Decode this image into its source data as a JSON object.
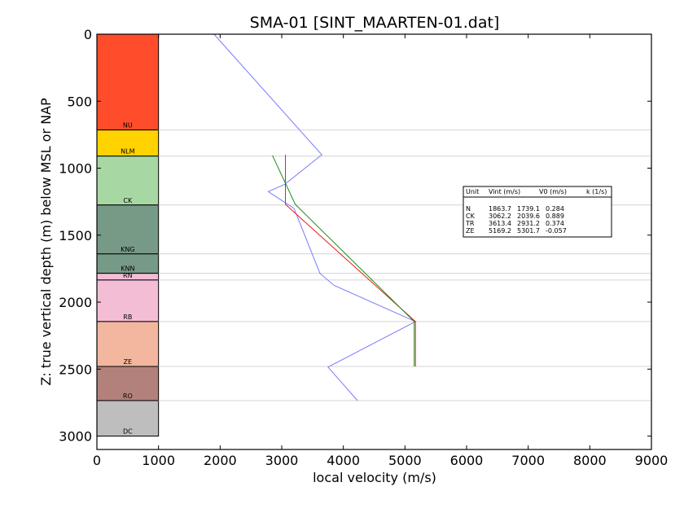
{
  "chart_data": {
    "type": "line",
    "title": "SMA-01 [SINT_MAARTEN-01.dat]",
    "xlabel": "local velocity (m/s)",
    "ylabel": "Z: true vertical depth (m) below MSL or NAP",
    "xlim": [
      0,
      9000
    ],
    "ylim": [
      3100,
      0
    ],
    "x_ticks": [
      0,
      1000,
      2000,
      3000,
      4000,
      5000,
      6000,
      7000,
      8000,
      9000
    ],
    "y_ticks": [
      0,
      500,
      1000,
      1500,
      2000,
      2500,
      3000
    ],
    "horizontal_grid_depths": [
      715,
      910,
      1275,
      1640,
      1785,
      1835,
      2145,
      2480,
      2735
    ],
    "layers": [
      {
        "label": "NU",
        "top": 0,
        "base": 715,
        "color": "#ff4c2a"
      },
      {
        "label": "NLM",
        "top": 715,
        "base": 910,
        "color": "#ffd200"
      },
      {
        "label": "CK",
        "top": 910,
        "base": 1275,
        "color": "#a7d7a3"
      },
      {
        "label": "KNG",
        "top": 1275,
        "base": 1640,
        "color": "#769a86"
      },
      {
        "label": "KNN",
        "top": 1640,
        "base": 1785,
        "color": "#769a86"
      },
      {
        "label": "RN",
        "top": 1785,
        "base": 1835,
        "color": "#f4bdd6"
      },
      {
        "label": "RB",
        "top": 1835,
        "base": 2145,
        "color": "#f4bdd6"
      },
      {
        "label": "ZE",
        "top": 2145,
        "base": 2480,
        "color": "#f3b7a0"
      },
      {
        "label": "RO",
        "top": 2480,
        "base": 2735,
        "color": "#b3817c"
      },
      {
        "label": "DC",
        "top": 2735,
        "base": 3000,
        "color": "#bebebe"
      }
    ],
    "layer_column_width": 1000,
    "series": [
      {
        "color": "#7a7aff",
        "points": [
          [
            1900,
            0
          ],
          [
            3650,
            900
          ],
          [
            3050,
            1120
          ],
          [
            2780,
            1175
          ],
          [
            3200,
            1300
          ],
          [
            3620,
            1785
          ],
          [
            3850,
            1875
          ],
          [
            5170,
            2145
          ],
          [
            3750,
            2485
          ],
          [
            4230,
            2735
          ]
        ]
      },
      {
        "color": "#e62020",
        "points": [
          [
            3060,
            900
          ],
          [
            3060,
            1270
          ],
          [
            5170,
            2145
          ],
          [
            5170,
            2480
          ]
        ]
      },
      {
        "color": "#1a8a1a",
        "points": [
          [
            2850,
            905
          ],
          [
            3220,
            1270
          ],
          [
            5150,
            2145
          ],
          [
            5150,
            2480
          ]
        ]
      }
    ],
    "legend_table": {
      "placement": "right",
      "header": [
        "Unit",
        "Vint (m/s)",
        "V0 (m/s)",
        "k (1/s)"
      ],
      "rows": [
        [
          "N",
          "1863.7",
          "1739.1",
          "0.284"
        ],
        [
          "CK",
          "3062.2",
          "2039.6",
          "0.889"
        ],
        [
          "TR",
          "3613.4",
          "2931.2",
          "0.374"
        ],
        [
          "ZE",
          "5169.2",
          "5301.7",
          "-0.057"
        ]
      ]
    }
  }
}
